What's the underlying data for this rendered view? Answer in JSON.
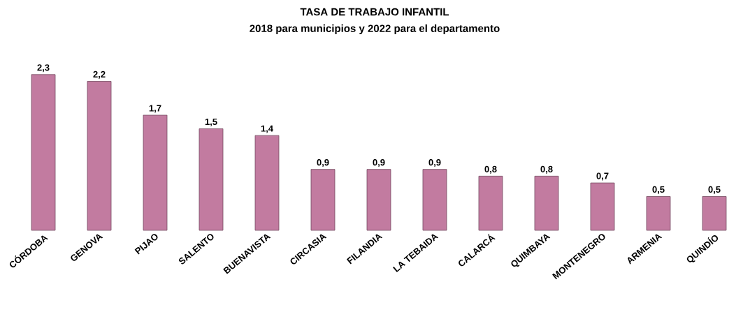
{
  "chart_data": {
    "type": "bar",
    "title": "TASA DE TRABAJO INFANTIL",
    "subtitle": "2018 para municipios y 2022 para el departamento",
    "categories": [
      "CÓRDOBA",
      "GENOVA",
      "PIJAO",
      "SALENTO",
      "BUENAVISTA",
      "CIRCASIA",
      "FILANDIA",
      "LA TEBAIDA",
      "CALARCÁ",
      "QUIMBAYA",
      "MONTENEGRO",
      "ARMENIA",
      "QUINDÍO"
    ],
    "values": [
      2.3,
      2.2,
      1.7,
      1.5,
      1.4,
      0.9,
      0.9,
      0.9,
      0.8,
      0.8,
      0.7,
      0.5,
      0.5
    ],
    "value_labels": [
      "2,3",
      "2,2",
      "1,7",
      "1,5",
      "1,4",
      "0,9",
      "0,9",
      "0,9",
      "0,8",
      "0,8",
      "0,7",
      "0,5",
      "0,5"
    ],
    "color": "#c27ba0"
  }
}
